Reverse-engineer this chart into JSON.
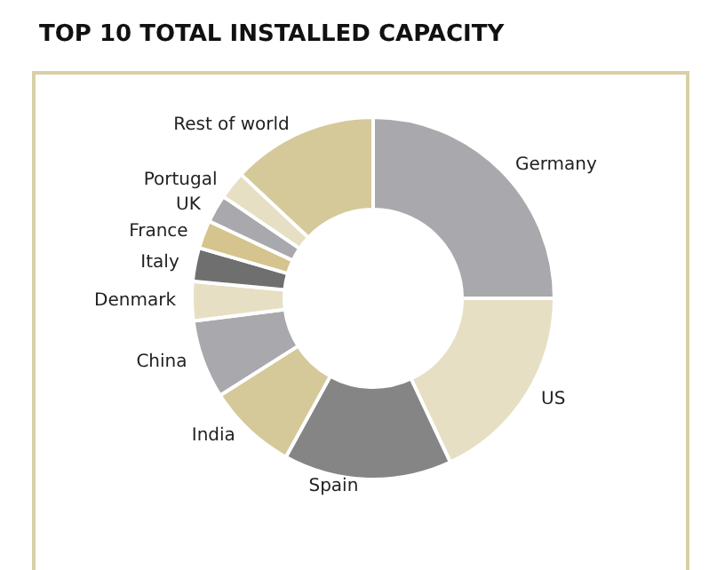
{
  "chart_data": {
    "type": "donut",
    "title": "TOP 10 TOTAL INSTALLED CAPACITY",
    "categories": [
      "Germany",
      "US",
      "Spain",
      "India",
      "China",
      "Denmark",
      "Italy",
      "France",
      "UK",
      "Portugal",
      "Rest of world"
    ],
    "values": [
      25,
      18,
      15,
      8,
      7,
      3.5,
      3,
      2.5,
      2.5,
      2.5,
      13
    ],
    "colors": [
      "#a9a8ad",
      "#e6dfc3",
      "#858585",
      "#d5c99a",
      "#a9a8ad",
      "#e6dfc3",
      "#6f6f6f",
      "#d5c48d",
      "#a9a8ad",
      "#e6dfc3",
      "#d5c99a"
    ],
    "legend": false
  }
}
